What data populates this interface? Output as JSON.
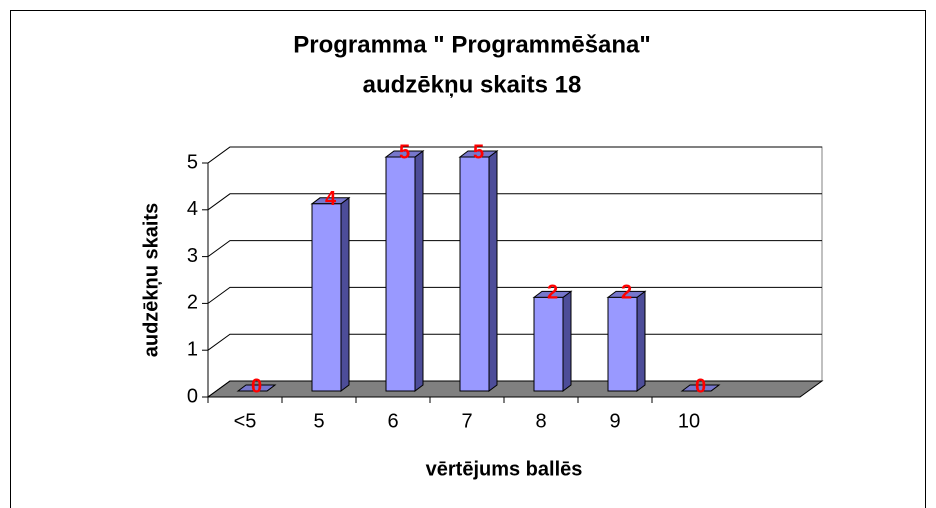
{
  "chart_data": {
    "type": "bar3d",
    "title": [
      "Programma \" Programmēšana\"",
      "audzēkņu skaits 18"
    ],
    "x_label": "vērtējums ballēs",
    "y_label": "audzēkņu skaits",
    "categories": [
      "<5",
      "5",
      "6",
      "7",
      "8",
      "9",
      "10"
    ],
    "values": [
      0,
      4,
      5,
      5,
      2,
      2,
      0
    ],
    "color": "#9999ff",
    "label_color": "#ff0000",
    "floor_color": "#808080",
    "ylim": [
      0,
      5
    ],
    "yticks": [
      0,
      1,
      2,
      3,
      4,
      5
    ],
    "grid": true
  }
}
